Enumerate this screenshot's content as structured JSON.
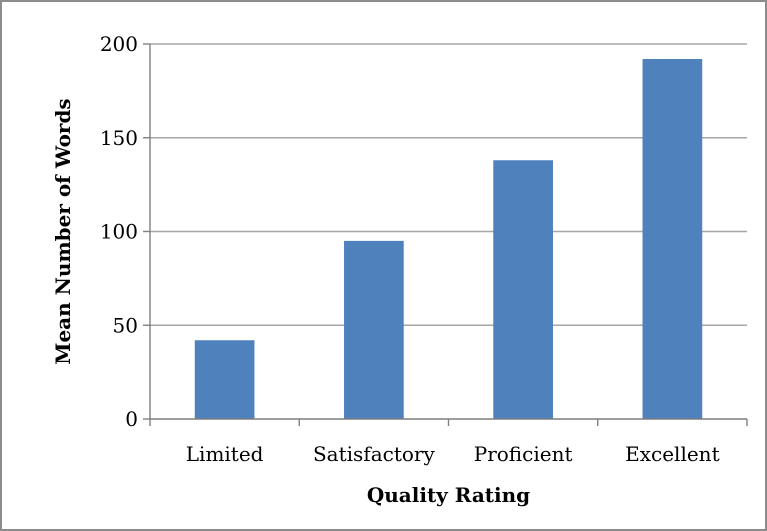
{
  "chart_data": {
    "type": "bar",
    "title": "",
    "xlabel": "Quality Rating",
    "ylabel": "Mean Number of Words",
    "categories": [
      "Limited",
      "Satisfactory",
      "Proficient",
      "Excellent"
    ],
    "values": [
      42,
      95,
      138,
      192
    ],
    "ylim": [
      0,
      200
    ],
    "yticks": [
      0,
      50,
      100,
      150,
      200
    ],
    "grid": true,
    "legend": "none",
    "bar_color": "#4f81bd"
  }
}
